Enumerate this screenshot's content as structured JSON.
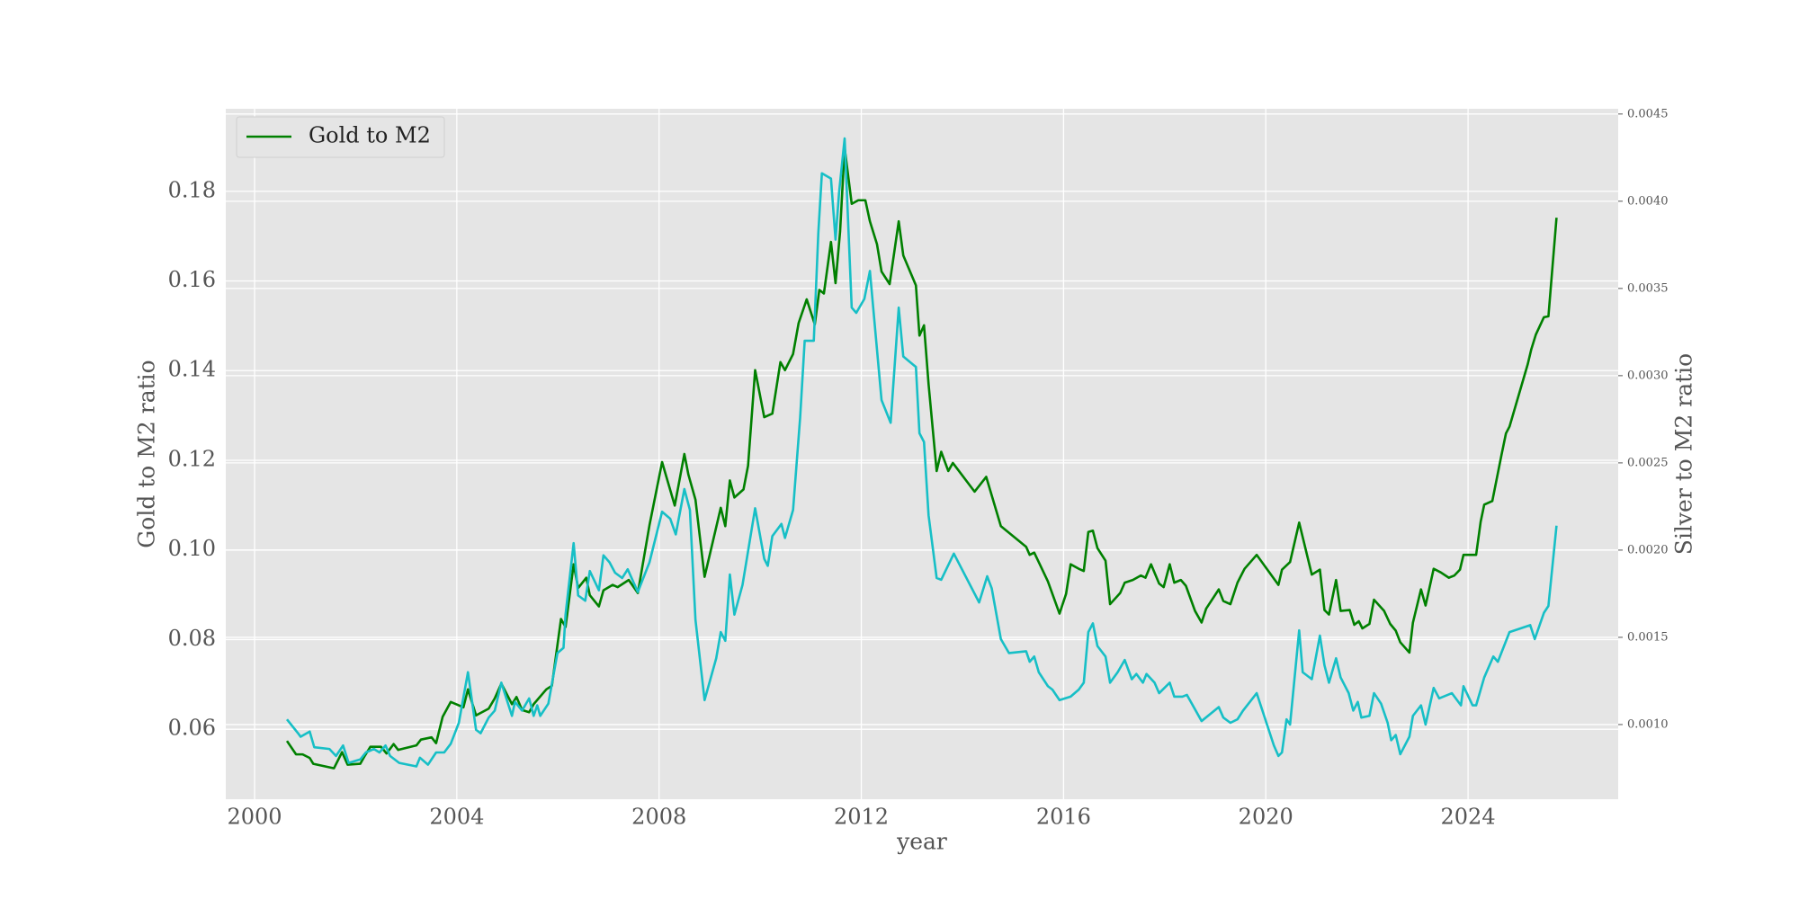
{
  "chart_data": {
    "type": "line",
    "xlabel": "year",
    "ylabel": "Gold to M2 ratio",
    "y2label": "Silver to M2 ratio",
    "xlim": [
      1999.43,
      2026.97
    ],
    "xticks": [
      2000,
      2004,
      2008,
      2012,
      2016,
      2020,
      2024
    ],
    "ylim": [
      0.0444,
      0.1984
    ],
    "yticks": [
      0.06,
      0.08,
      {
        "value": 0.1,
        "label": "0.10"
      },
      0.12,
      0.14,
      0.16,
      0.18
    ],
    "y2lim": [
      0.000572,
      0.00453
    ],
    "y2ticks": [
      {
        "value": 0.001,
        "label": "0.0010"
      },
      {
        "value": 0.0015,
        "label": "0.0015"
      },
      {
        "value": 0.002,
        "label": "0.0020"
      },
      {
        "value": 0.0025,
        "label": "0.0025"
      },
      {
        "value": 0.003,
        "label": "0.0030"
      },
      {
        "value": 0.0035,
        "label": "0.0035"
      },
      {
        "value": 0.004,
        "label": "0.0040"
      },
      {
        "value": 0.0045,
        "label": "0.0045"
      }
    ],
    "grid": true,
    "legend": "upper left",
    "series": [
      {
        "name": "Gold to M2",
        "color": "#008000",
        "x": [
          2000.64,
          2000.82,
          2000.95,
          2001.09,
          2001.16,
          2001.57,
          2001.73,
          2001.84,
          2002.09,
          2002.18,
          2002.29,
          2002.5,
          2002.61,
          2002.75,
          2002.84,
          2003.2,
          2003.29,
          2003.5,
          2003.59,
          2003.72,
          2003.88,
          2004.13,
          2004.22,
          2004.38,
          2004.63,
          2004.75,
          2004.88,
          2005.09,
          2005.18,
          2005.29,
          2005.43,
          2005.52,
          2005.77,
          2005.88,
          2006.06,
          2006.15,
          2006.31,
          2006.4,
          2006.56,
          2006.63,
          2006.81,
          2006.9,
          2007.08,
          2007.18,
          2007.4,
          2007.58,
          2007.81,
          2008.06,
          2008.31,
          2008.5,
          2008.58,
          2008.72,
          2008.9,
          2009.22,
          2009.31,
          2009.4,
          2009.49,
          2009.67,
          2009.76,
          2009.9,
          2010.08,
          2010.24,
          2010.4,
          2010.49,
          2010.65,
          2010.76,
          2010.92,
          2011.08,
          2011.17,
          2011.26,
          2011.4,
          2011.49,
          2011.58,
          2011.67,
          2011.81,
          2011.94,
          2012.08,
          2012.17,
          2012.31,
          2012.4,
          2012.56,
          2012.74,
          2012.83,
          2013.08,
          2013.15,
          2013.24,
          2013.33,
          2013.49,
          2013.58,
          2013.72,
          2013.81,
          2014.24,
          2014.47,
          2014.76,
          2015.26,
          2015.33,
          2015.42,
          2015.69,
          2015.92,
          2016.05,
          2016.14,
          2016.3,
          2016.4,
          2016.49,
          2016.58,
          2016.67,
          2016.83,
          2016.92,
          2017.12,
          2017.21,
          2017.37,
          2017.53,
          2017.62,
          2017.73,
          2017.89,
          2017.98,
          2018.1,
          2018.19,
          2018.32,
          2018.42,
          2018.6,
          2018.73,
          2018.82,
          2019.07,
          2019.16,
          2019.3,
          2019.44,
          2019.58,
          2019.82,
          2020.25,
          2020.32,
          2020.48,
          2020.66,
          2020.91,
          2021.07,
          2021.16,
          2021.25,
          2021.39,
          2021.48,
          2021.66,
          2021.75,
          2021.84,
          2021.91,
          2022.05,
          2022.14,
          2022.34,
          2022.46,
          2022.57,
          2022.66,
          2022.84,
          2022.91,
          2023.07,
          2023.16,
          2023.32,
          2023.46,
          2023.62,
          2023.73,
          2023.84,
          2023.91,
          2024.16,
          2024.25,
          2024.32,
          2024.48,
          2024.66,
          2024.75,
          2024.82,
          2025.18,
          2025.25,
          2025.34,
          2025.5,
          2025.59,
          2025.75
        ],
        "values": [
          0.0574,
          0.0544,
          0.0544,
          0.0536,
          0.0523,
          0.0513,
          0.0549,
          0.0521,
          0.0523,
          0.0541,
          0.0561,
          0.0561,
          0.0546,
          0.0567,
          0.0554,
          0.0564,
          0.0577,
          0.0582,
          0.0569,
          0.0628,
          0.0661,
          0.0649,
          0.0689,
          0.0631,
          0.0646,
          0.0669,
          0.0702,
          0.0656,
          0.0672,
          0.0643,
          0.0638,
          0.0656,
          0.0689,
          0.0697,
          0.0846,
          0.0828,
          0.0968,
          0.0915,
          0.0938,
          0.0899,
          0.0874,
          0.091,
          0.0922,
          0.0917,
          0.0933,
          0.0904,
          0.1055,
          0.1196,
          0.1099,
          0.1214,
          0.1168,
          0.1112,
          0.094,
          0.1094,
          0.1053,
          0.1155,
          0.1117,
          0.1135,
          0.1188,
          0.1401,
          0.1296,
          0.1304,
          0.1419,
          0.1401,
          0.1437,
          0.1506,
          0.1559,
          0.1503,
          0.158,
          0.1572,
          0.1687,
          0.1595,
          0.171,
          0.1897,
          0.1772,
          0.178,
          0.178,
          0.1733,
          0.1682,
          0.1621,
          0.1593,
          0.1733,
          0.1657,
          0.159,
          0.1478,
          0.1501,
          0.137,
          0.1176,
          0.1219,
          0.1176,
          0.1194,
          0.113,
          0.1163,
          0.1053,
          0.1007,
          0.0989,
          0.0994,
          0.093,
          0.0858,
          0.0902,
          0.0968,
          0.0958,
          0.0953,
          0.104,
          0.1043,
          0.1004,
          0.0976,
          0.0879,
          0.0904,
          0.0927,
          0.0933,
          0.0943,
          0.0938,
          0.0968,
          0.0925,
          0.0917,
          0.0968,
          0.0927,
          0.0933,
          0.092,
          0.0864,
          0.0838,
          0.0869,
          0.0912,
          0.0886,
          0.0879,
          0.0927,
          0.0958,
          0.0989,
          0.0922,
          0.0956,
          0.0973,
          0.1061,
          0.0945,
          0.0956,
          0.0866,
          0.0856,
          0.0933,
          0.0864,
          0.0866,
          0.0833,
          0.0841,
          0.0825,
          0.0835,
          0.0889,
          0.0864,
          0.0835,
          0.082,
          0.0794,
          0.0771,
          0.0838,
          0.0912,
          0.0876,
          0.0958,
          0.095,
          0.0938,
          0.0943,
          0.0956,
          0.0989,
          0.0989,
          0.1063,
          0.1101,
          0.1109,
          0.1211,
          0.126,
          0.1275,
          0.1414,
          0.1447,
          0.148,
          0.1519,
          0.1521,
          0.1741
        ]
      },
      {
        "color": "#17bfc6",
        "axis": "y2",
        "x": [
          2000.64,
          2000.86,
          2000.91,
          2001.09,
          2001.18,
          2001.48,
          2001.61,
          2001.75,
          2001.86,
          2002.09,
          2002.2,
          2002.36,
          2002.47,
          2002.59,
          2002.68,
          2002.86,
          2003.2,
          2003.27,
          2003.43,
          2003.59,
          2003.75,
          2003.88,
          2004.04,
          2004.22,
          2004.38,
          2004.47,
          2004.63,
          2004.75,
          2004.88,
          2005.09,
          2005.15,
          2005.29,
          2005.43,
          2005.52,
          2005.59,
          2005.65,
          2005.81,
          2005.99,
          2006.11,
          2006.15,
          2006.31,
          2006.4,
          2006.54,
          2006.63,
          2006.81,
          2006.9,
          2007.02,
          2007.13,
          2007.27,
          2007.38,
          2007.58,
          2007.81,
          2008.06,
          2008.22,
          2008.33,
          2008.5,
          2008.61,
          2008.72,
          2008.9,
          2009.13,
          2009.22,
          2009.31,
          2009.4,
          2009.49,
          2009.65,
          2009.9,
          2010.08,
          2010.15,
          2010.24,
          2010.42,
          2010.49,
          2010.65,
          2010.79,
          2010.88,
          2011.06,
          2011.15,
          2011.22,
          2011.4,
          2011.49,
          2011.56,
          2011.67,
          2011.81,
          2011.9,
          2012.06,
          2012.17,
          2012.4,
          2012.58,
          2012.74,
          2012.83,
          2013.08,
          2013.15,
          2013.24,
          2013.33,
          2013.49,
          2013.58,
          2013.83,
          2014.33,
          2014.49,
          2014.58,
          2014.76,
          2014.92,
          2015.26,
          2015.33,
          2015.42,
          2015.51,
          2015.69,
          2015.78,
          2015.92,
          2016.14,
          2016.3,
          2016.4,
          2016.49,
          2016.58,
          2016.67,
          2016.83,
          2016.92,
          2017.07,
          2017.21,
          2017.35,
          2017.44,
          2017.57,
          2017.64,
          2017.8,
          2017.89,
          2018.1,
          2018.19,
          2018.35,
          2018.44,
          2018.73,
          2019.07,
          2019.16,
          2019.3,
          2019.44,
          2019.55,
          2019.82,
          2020.16,
          2020.25,
          2020.32,
          2020.41,
          2020.48,
          2020.66,
          2020.73,
          2020.91,
          2021.07,
          2021.16,
          2021.25,
          2021.39,
          2021.48,
          2021.64,
          2021.73,
          2021.82,
          2021.89,
          2022.05,
          2022.14,
          2022.28,
          2022.41,
          2022.48,
          2022.57,
          2022.66,
          2022.84,
          2022.91,
          2023.07,
          2023.16,
          2023.32,
          2023.43,
          2023.68,
          2023.86,
          2023.91,
          2024.09,
          2024.16,
          2024.32,
          2024.5,
          2024.59,
          2024.82,
          2025.23,
          2025.32,
          2025.5,
          2025.59,
          2025.75
        ],
        "values": [
          0.00103,
          0.00095,
          0.00093,
          0.00096,
          0.00087,
          0.00086,
          0.00082,
          0.00088,
          0.00078,
          0.0008,
          0.00084,
          0.00086,
          0.00084,
          0.00088,
          0.00082,
          0.00078,
          0.00076,
          0.00081,
          0.00077,
          0.00084,
          0.00084,
          0.00089,
          0.00101,
          0.0013,
          0.00097,
          0.00095,
          0.00104,
          0.00108,
          0.00124,
          0.00105,
          0.00113,
          0.00108,
          0.00115,
          0.00105,
          0.00111,
          0.00105,
          0.00112,
          0.00141,
          0.00144,
          0.00163,
          0.00204,
          0.00174,
          0.00171,
          0.00188,
          0.00177,
          0.00197,
          0.00193,
          0.00187,
          0.00184,
          0.00189,
          0.00176,
          0.00193,
          0.00222,
          0.00218,
          0.00209,
          0.00235,
          0.00223,
          0.0016,
          0.00114,
          0.00138,
          0.00153,
          0.00148,
          0.00186,
          0.00163,
          0.0018,
          0.00224,
          0.00195,
          0.00191,
          0.00208,
          0.00215,
          0.00207,
          0.00223,
          0.00276,
          0.0032,
          0.0032,
          0.00382,
          0.00416,
          0.00413,
          0.00378,
          0.00405,
          0.00436,
          0.00339,
          0.00336,
          0.00344,
          0.0036,
          0.00286,
          0.00273,
          0.00339,
          0.00311,
          0.00305,
          0.00267,
          0.00262,
          0.0022,
          0.00184,
          0.00183,
          0.00198,
          0.0017,
          0.00185,
          0.00178,
          0.00149,
          0.00141,
          0.00142,
          0.00136,
          0.00139,
          0.0013,
          0.00122,
          0.0012,
          0.00114,
          0.00116,
          0.0012,
          0.00124,
          0.00153,
          0.00158,
          0.00145,
          0.00139,
          0.00124,
          0.0013,
          0.00137,
          0.00126,
          0.00129,
          0.00124,
          0.00129,
          0.00124,
          0.00118,
          0.00124,
          0.00116,
          0.00116,
          0.00117,
          0.00102,
          0.0011,
          0.00104,
          0.00101,
          0.00103,
          0.00108,
          0.00118,
          0.00088,
          0.00082,
          0.00084,
          0.00103,
          0.001,
          0.00154,
          0.0013,
          0.00126,
          0.00151,
          0.00134,
          0.00124,
          0.00138,
          0.00127,
          0.00118,
          0.00108,
          0.00113,
          0.00104,
          0.00105,
          0.00118,
          0.00112,
          0.00101,
          0.00091,
          0.00094,
          0.00083,
          0.00093,
          0.00105,
          0.00111,
          0.001,
          0.00121,
          0.00115,
          0.00118,
          0.00111,
          0.00122,
          0.00111,
          0.00111,
          0.00127,
          0.00139,
          0.00136,
          0.00153,
          0.00157,
          0.00149,
          0.00164,
          0.00168,
          0.00214
        ]
      }
    ]
  }
}
